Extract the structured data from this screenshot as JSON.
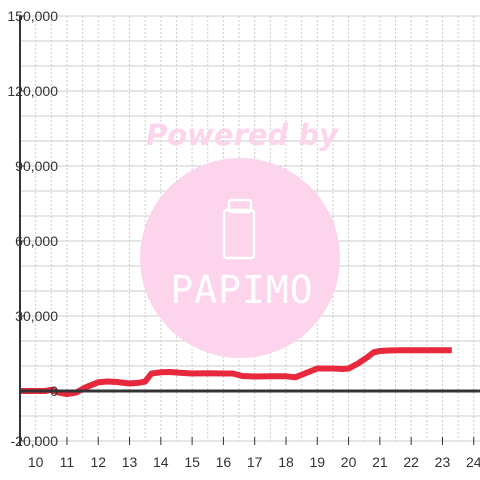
{
  "watermark": {
    "powered_by": "Powered by",
    "logo_text": "PAPIMO",
    "color": "#fcd4ec",
    "icon": "phone-icon"
  },
  "chart_data": {
    "type": "line",
    "title": "",
    "xlabel": "",
    "ylabel": "",
    "xlim": [
      9.5,
      24.2
    ],
    "ylim": [
      -20000,
      150000
    ],
    "x_ticks": [
      10,
      11,
      12,
      13,
      14,
      15,
      16,
      17,
      18,
      19,
      20,
      21,
      22,
      23,
      24
    ],
    "x_tick_labels": [
      "10",
      "11",
      "12",
      "13",
      "14",
      "15",
      "16",
      "17",
      "18",
      "19",
      "20",
      "21",
      "22",
      "23",
      "24"
    ],
    "y_ticks": [
      150000,
      120000,
      90000,
      60000,
      30000,
      0,
      -20000
    ],
    "y_tick_labels": [
      "150,000",
      "120,000",
      "90,000",
      "60,000",
      "30,000",
      "0",
      "-20,000"
    ],
    "grid": true,
    "line_color": "#e8283c",
    "zero_line_color": "#333333",
    "series": [
      {
        "x": [
          9.5,
          10.0,
          10.3,
          10.5,
          10.7,
          11.0,
          11.3,
          11.6,
          12.0,
          12.3,
          12.6,
          13.0,
          13.3,
          13.5,
          13.7,
          14.0,
          14.3,
          14.6,
          15.0,
          15.5,
          16.0,
          16.3,
          16.6,
          17.0,
          17.5,
          18.0,
          18.3,
          18.6,
          19.0,
          19.5,
          19.8,
          20.0,
          20.3,
          20.6,
          20.8,
          21.0,
          21.3,
          21.6,
          22.0,
          22.5,
          23.0,
          23.3
        ],
        "values": [
          0,
          0,
          0,
          500,
          -500,
          -1200,
          -600,
          1500,
          3500,
          3800,
          3600,
          3000,
          3300,
          3800,
          7000,
          7500,
          7600,
          7300,
          7000,
          7100,
          7000,
          7000,
          6000,
          5800,
          5900,
          5900,
          5500,
          7000,
          9000,
          9000,
          8800,
          9000,
          11000,
          13500,
          15500,
          16000,
          16200,
          16300,
          16300,
          16300,
          16300,
          16300
        ]
      }
    ]
  }
}
